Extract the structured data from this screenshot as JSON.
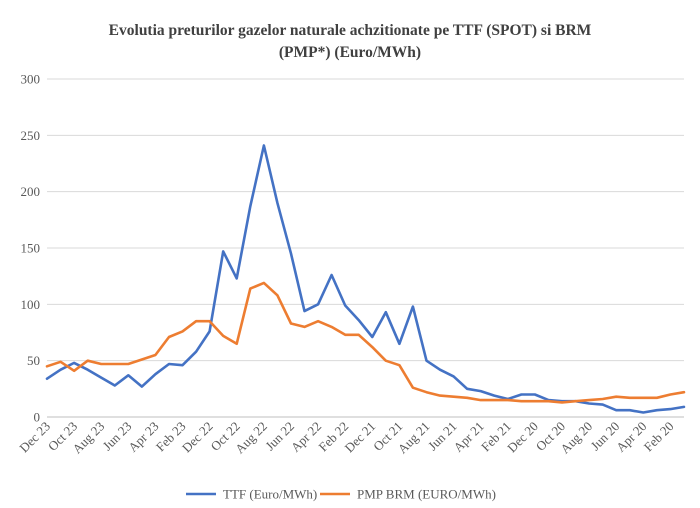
{
  "chart_data": {
    "type": "line",
    "title_line1": "Evolutia preturilor gazelor naturale achzitionate pe TTF (SPOT) si BRM",
    "title_line2": "(PMP*) (Euro/MWh)",
    "xlabel": "",
    "ylabel": "",
    "ylim": [
      0,
      300
    ],
    "yticks": [
      0,
      50,
      100,
      150,
      200,
      250,
      300
    ],
    "grid": true,
    "legend_position": "bottom",
    "x": [
      "Dec 23",
      "Nov 23",
      "Oct 23",
      "Sep 23",
      "Aug 23",
      "Jul 23",
      "Jun 23",
      "May 23",
      "Apr 23",
      "Mar 23",
      "Feb 23",
      "Jan 23",
      "Dec 22",
      "Nov 22",
      "Oct 22",
      "Sep 22",
      "Aug 22",
      "Jul 22",
      "Jun 22",
      "May 22",
      "Apr 22",
      "Mar 22",
      "Feb 22",
      "Jan 22",
      "Dec 21",
      "Nov 21",
      "Oct 21",
      "Sep 21",
      "Aug 21",
      "Jul 21",
      "Jun 21",
      "May 21",
      "Apr 21",
      "Mar 21",
      "Feb 21",
      "Jan 21",
      "Dec 20",
      "Nov 20",
      "Oct 20",
      "Sep 20",
      "Aug 20",
      "Jul 20",
      "Jun 20",
      "May 20",
      "Apr 20",
      "Mar 20",
      "Feb 20",
      "Jan 20"
    ],
    "x_tick_labels": [
      "Dec 23",
      "Oct 23",
      "Aug 23",
      "Jun 23",
      "Apr 23",
      "Feb 23",
      "Dec 22",
      "Oct 22",
      "Aug 22",
      "Jun 22",
      "Apr 22",
      "Feb 22",
      "Dec 21",
      "Oct 21",
      "Aug 21",
      "Jun 21",
      "Apr 21",
      "Feb 21",
      "Dec 20",
      "Oct 20",
      "Aug 20",
      "Jun 20",
      "Apr 20",
      "Feb 20"
    ],
    "series": [
      {
        "name": "TTF (Euro/MWh)",
        "color": "#4472C4",
        "values": [
          34,
          42,
          48,
          42,
          35,
          28,
          37,
          27,
          38,
          47,
          46,
          58,
          76,
          147,
          123,
          187,
          241,
          190,
          145,
          94,
          100,
          126,
          99,
          86,
          71,
          93,
          65,
          98,
          50,
          42,
          36,
          25,
          23,
          19,
          16,
          20,
          20,
          15,
          14,
          14,
          12,
          11,
          6,
          6,
          4,
          6,
          7,
          9
        ]
      },
      {
        "name": "PMP BRM (EURO/MWh)",
        "color": "#ED7D31",
        "values": [
          45,
          49,
          41,
          50,
          47,
          47,
          47,
          51,
          55,
          71,
          76,
          85,
          85,
          72,
          65,
          114,
          119,
          108,
          83,
          80,
          85,
          80,
          73,
          73,
          62,
          50,
          46,
          26,
          22,
          19,
          18,
          17,
          15,
          15,
          15,
          14,
          14,
          14,
          13,
          14,
          15,
          16,
          18,
          17,
          17,
          17,
          20,
          22
        ]
      }
    ]
  }
}
